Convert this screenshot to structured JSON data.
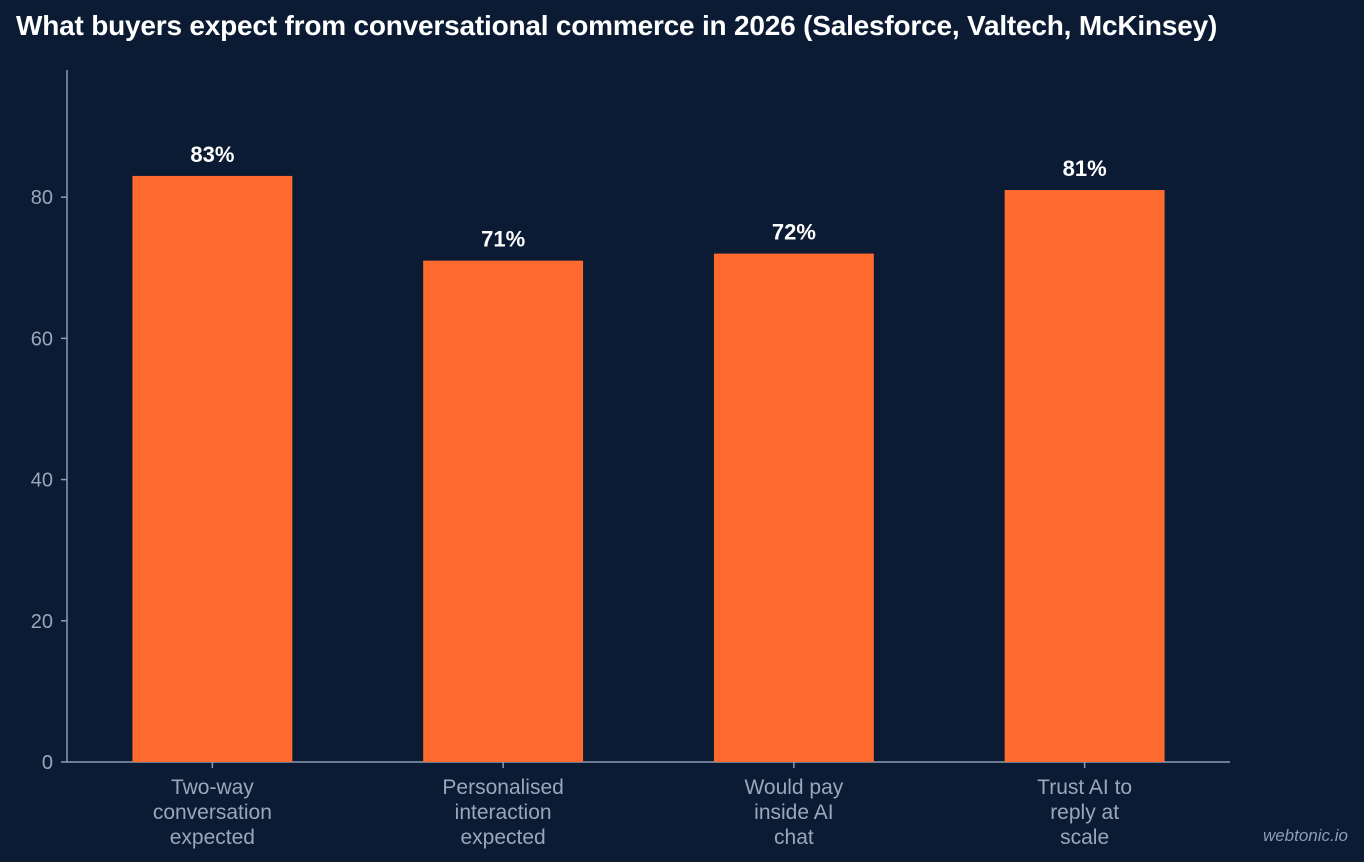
{
  "chart_data": {
    "type": "bar",
    "title": "What buyers expect from conversational commerce in 2026 (Salesforce, Valtech, McKinsey)",
    "categories": [
      [
        "Two-way",
        "conversation",
        "expected"
      ],
      [
        "Personalised",
        "interaction",
        "expected"
      ],
      [
        "Would pay",
        "inside AI",
        "chat"
      ],
      [
        "Trust AI to",
        "reply at",
        "scale"
      ]
    ],
    "values": [
      83,
      71,
      72,
      81
    ],
    "value_labels": [
      "83%",
      "71%",
      "72%",
      "81%"
    ],
    "yticks": [
      "0",
      "20",
      "40",
      "60",
      "80"
    ],
    "ylim": [
      0,
      98
    ],
    "grid": false,
    "colors": {
      "bar": "#ff6b2e",
      "background": "#0b1b33",
      "axis": "#8d9bb5",
      "tick_text": "#9aa6bd",
      "label_text": "#ffffff"
    }
  },
  "credit": "webtonic.io"
}
